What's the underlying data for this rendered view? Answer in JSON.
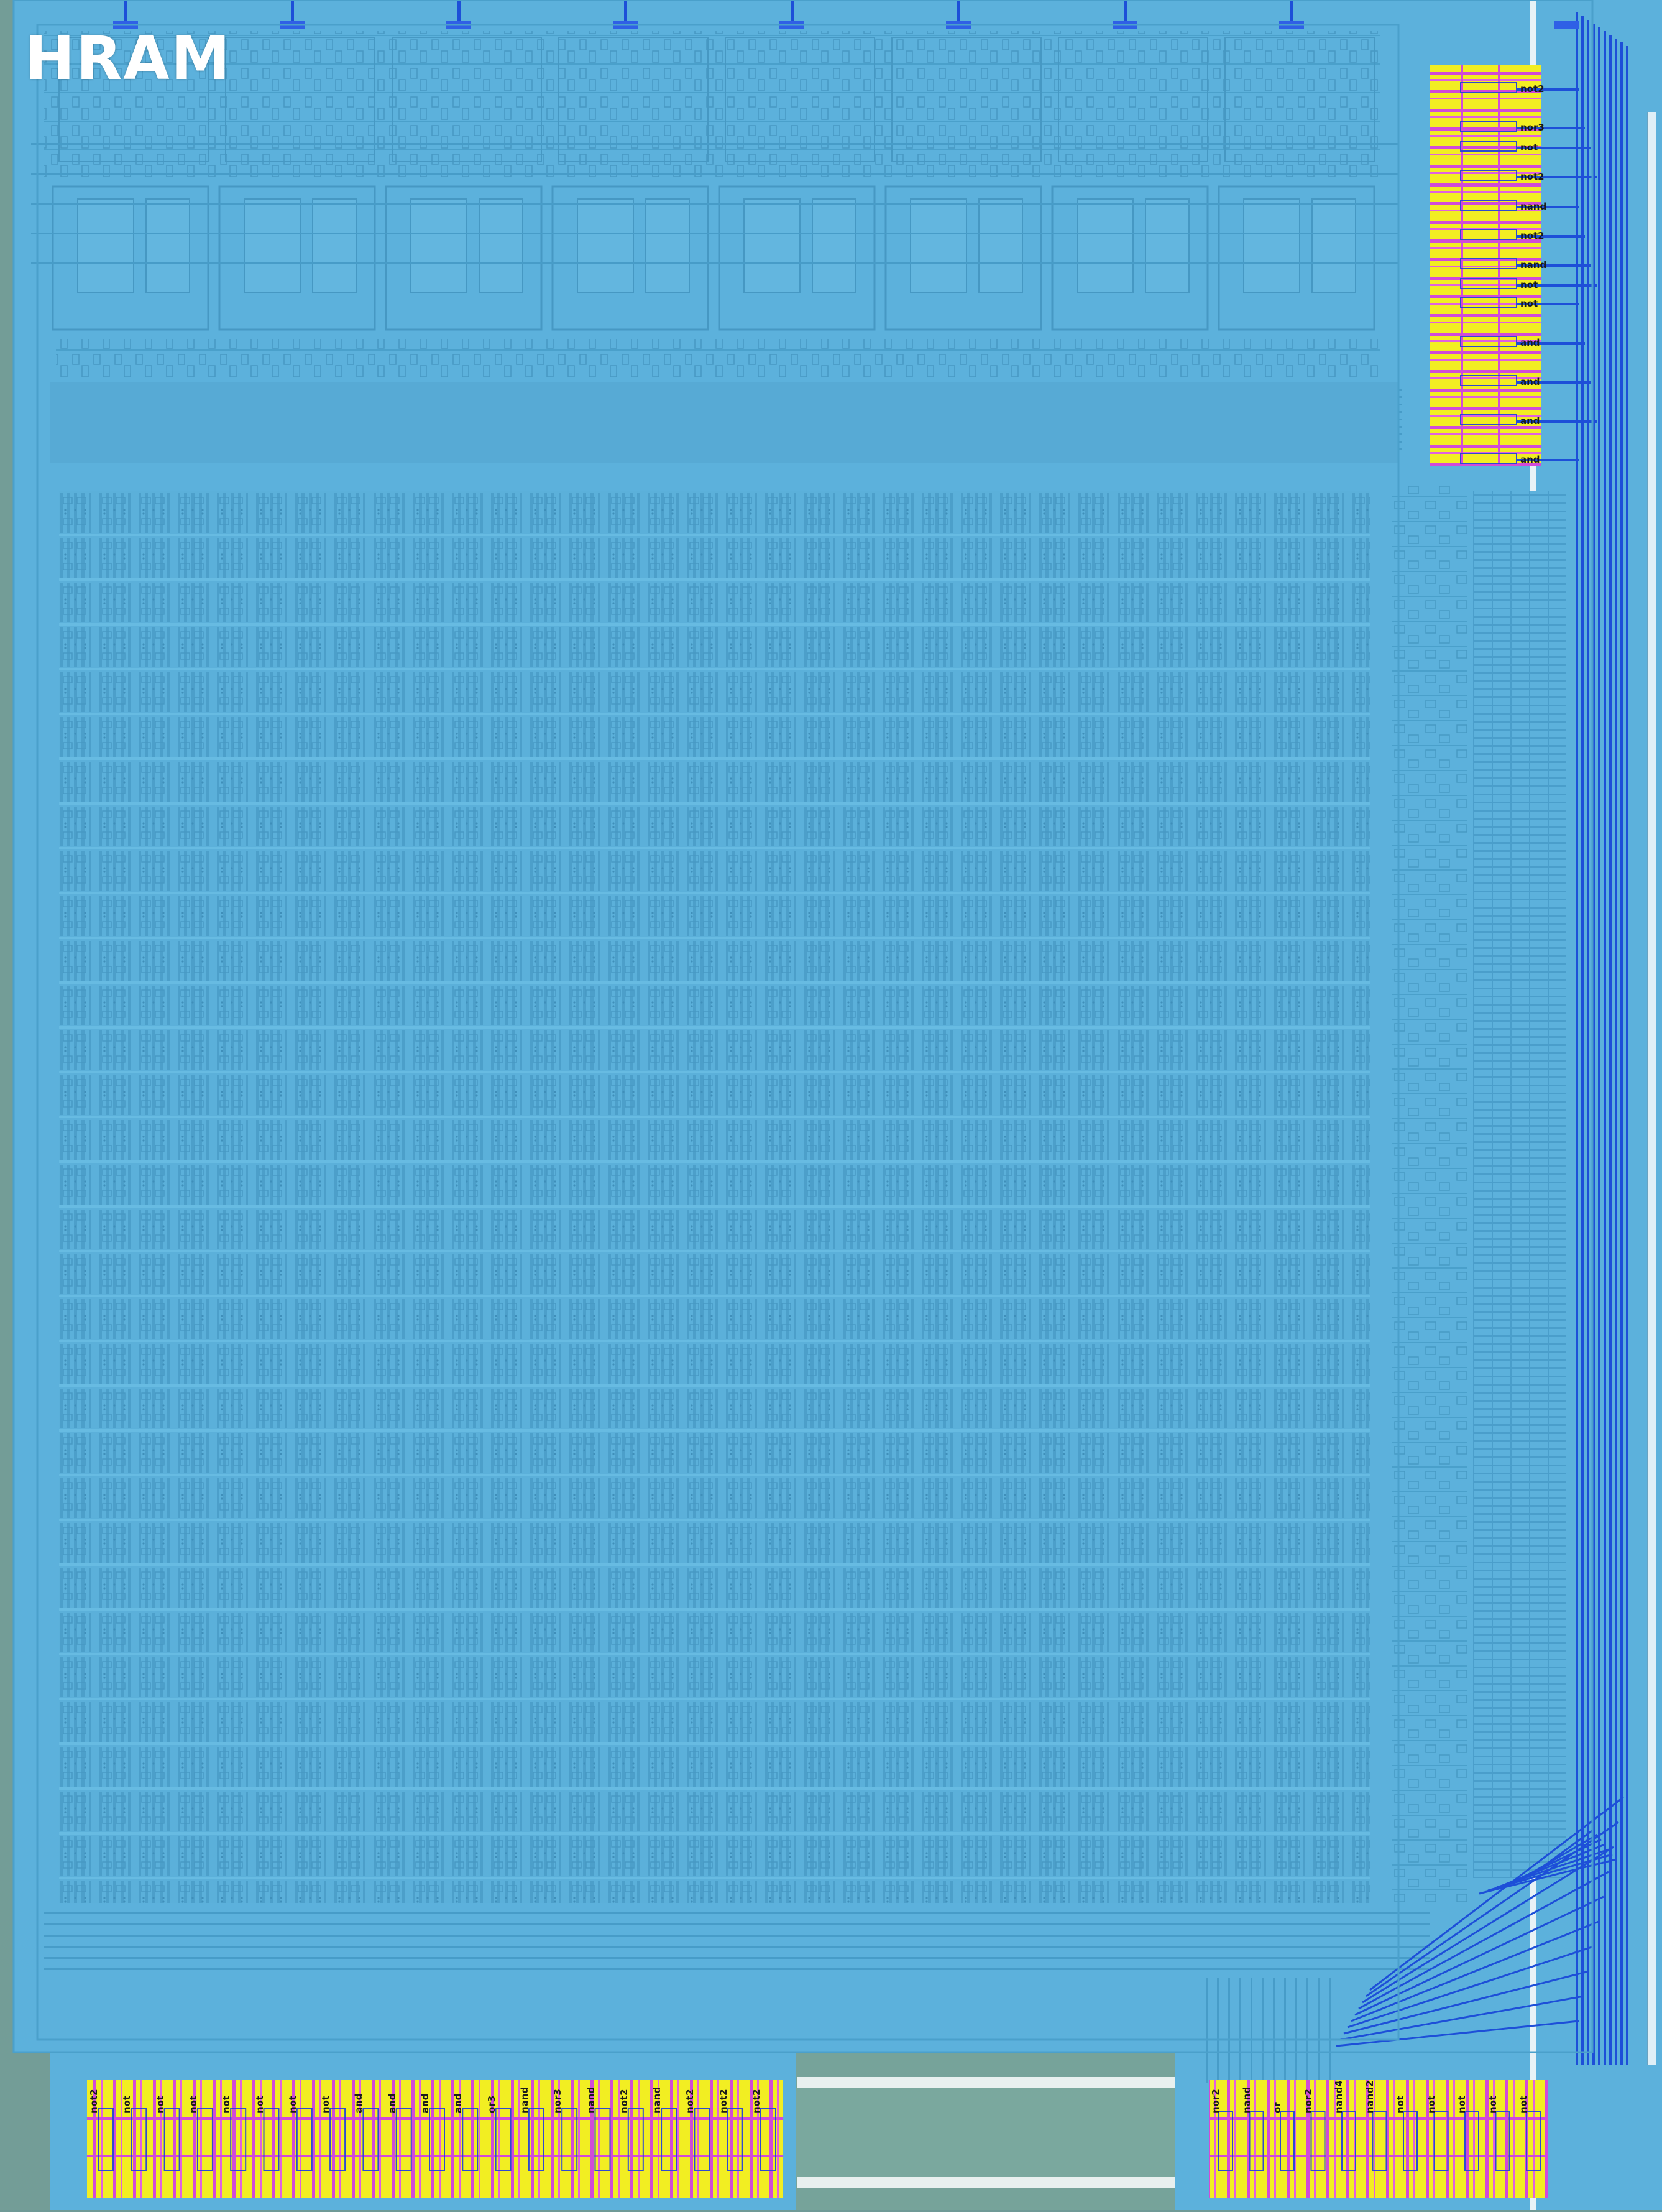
{
  "title": "HRAM",
  "right_cells": [
    "not2",
    "nor3",
    "not",
    "not2",
    "nand",
    "not2",
    "nand",
    "not",
    "not",
    "and",
    "and",
    "and",
    "and"
  ],
  "bottom_left_cells": [
    "not2",
    "not",
    "not",
    "not",
    "not",
    "not",
    "not",
    "not",
    "and",
    "and",
    "and",
    "and",
    "or3",
    "nand",
    "nor3",
    "nand",
    "not2",
    "nand",
    "not2",
    "not2",
    "not2"
  ],
  "bottom_right_cells": [
    "nor2",
    "nand",
    "or",
    "nor2",
    "nand4",
    "nand2",
    "not",
    "not",
    "not",
    "not",
    "not"
  ],
  "colors": {
    "die_background": "#6f9a96",
    "metal_fill": "#5cb1dc",
    "metal_line": "#4aa0cb",
    "std_cell_yellow": "#f2ee22",
    "std_cell_magenta": "#d14bd8",
    "bus_blue": "#1d4fd8"
  }
}
